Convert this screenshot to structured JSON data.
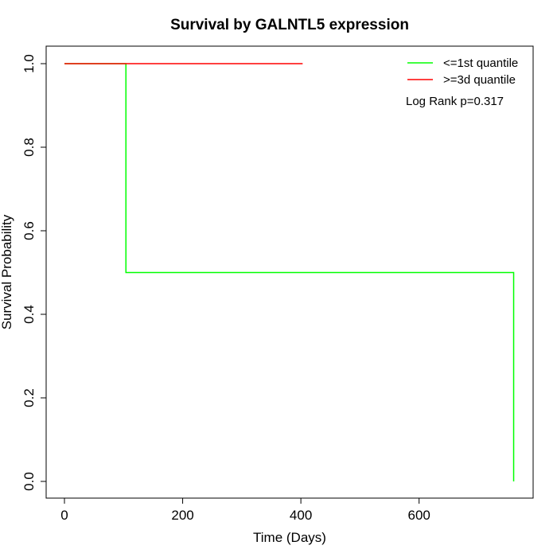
{
  "chart_data": {
    "type": "line",
    "step": true,
    "title": "Survival by GALNTL5 expression",
    "xlabel": "Time (Days)",
    "ylabel": "Survival Probability",
    "xlim": [
      0,
      760
    ],
    "ylim": [
      0,
      1
    ],
    "xticks": [
      0,
      200,
      400,
      600
    ],
    "yticks": [
      0.0,
      0.2,
      0.4,
      0.6,
      0.8,
      1.0
    ],
    "xtick_labels": [
      "0",
      "200",
      "400",
      "600"
    ],
    "ytick_labels": [
      "0.0",
      "0.2",
      "0.4",
      "0.6",
      "0.8",
      "1.0"
    ],
    "grid": false,
    "legend_position": "top-right",
    "series": [
      {
        "name": "<=1st quantile",
        "color": "#00ff00",
        "x": [
          0,
          104,
          104,
          760,
          760
        ],
        "y": [
          1.0,
          1.0,
          0.5,
          0.5,
          0.0
        ]
      },
      {
        "name": ">=3d quantile",
        "color": "#ff0000",
        "x": [
          0,
          403
        ],
        "y": [
          1.0,
          1.0
        ]
      }
    ],
    "annotation": "Log Rank p=0.317"
  }
}
